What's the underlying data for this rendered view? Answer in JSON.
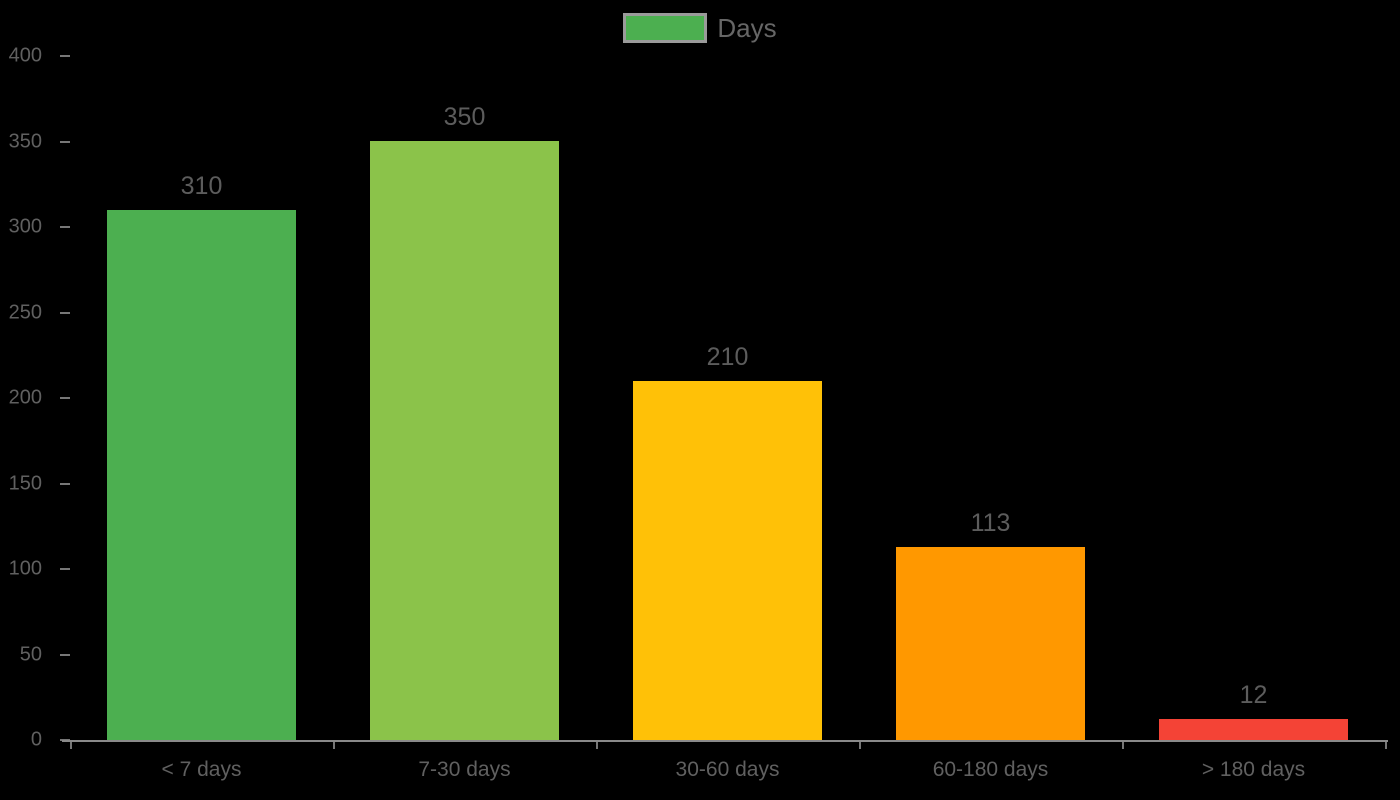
{
  "legend": {
    "label": "Days",
    "swatch_color": "#4caf50"
  },
  "colors": {
    "background": "#000000",
    "text": "#666666",
    "axis_line": "#8a8a8a",
    "tick_mark": "#777777"
  },
  "chart_data": {
    "type": "bar",
    "title": "",
    "xlabel": "",
    "ylabel": "",
    "legend_position": "top-center",
    "grid": false,
    "ylim": [
      0,
      400
    ],
    "y_ticks": [
      0,
      50,
      100,
      150,
      200,
      250,
      300,
      350,
      400
    ],
    "categories": [
      "< 7 days",
      "7-30 days",
      "30-60 days",
      "60-180 days",
      "> 180 days"
    ],
    "values": [
      310,
      350,
      210,
      113,
      12
    ],
    "value_labels": [
      "310",
      "350",
      "210",
      "113",
      "12"
    ],
    "bar_colors": [
      "#4caf50",
      "#8bc34a",
      "#ffc107",
      "#ff9800",
      "#f44336"
    ],
    "series_name": "Days"
  }
}
